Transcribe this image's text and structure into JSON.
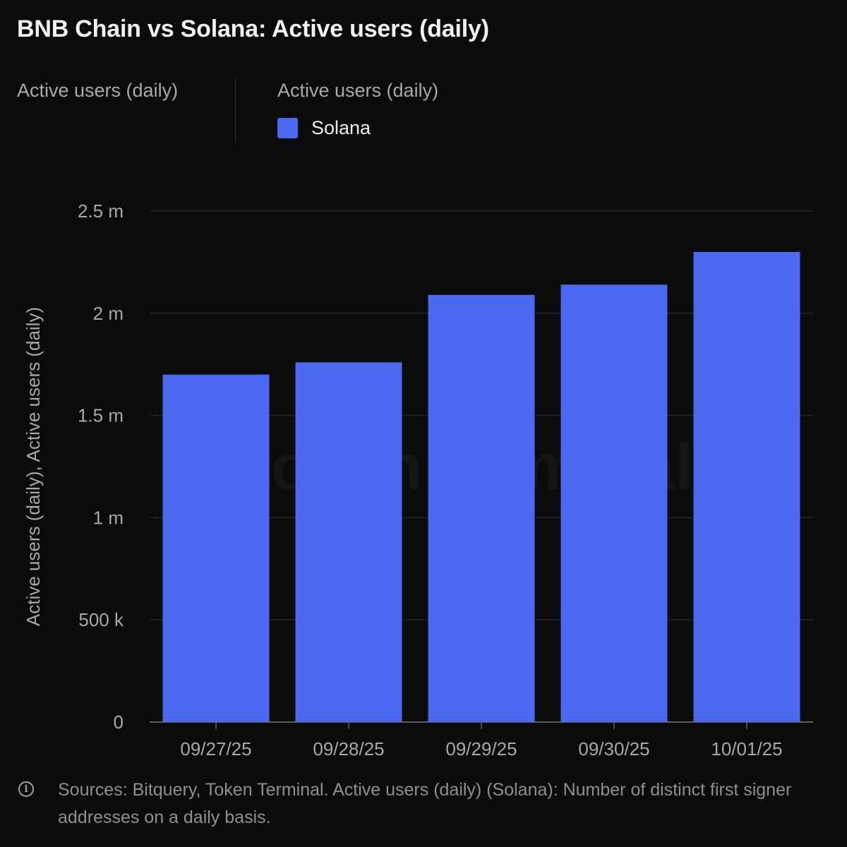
{
  "header": {
    "title": "BNB Chain vs Solana: Active users (daily)"
  },
  "legend": {
    "left_label": "Active users (daily)",
    "right_label": "Active users (daily)",
    "items": [
      {
        "label": "Solana",
        "color": "#4a69f0"
      }
    ]
  },
  "footnote": {
    "icon": "info-icon",
    "text": "Sources: Bitquery, Token Terminal. Active users (daily) (Solana): Number of distinct first signer addresses on a daily basis."
  },
  "chart_data": {
    "type": "bar",
    "categories": [
      "09/27/25",
      "09/28/25",
      "09/29/25",
      "09/30/25",
      "10/01/25"
    ],
    "series": [
      {
        "name": "Solana",
        "color": "#4a69f0",
        "values": [
          1700000,
          1760000,
          2090000,
          2140000,
          2300000
        ]
      }
    ],
    "ylabel": "Active users (daily), Active users (daily)",
    "ylim": [
      0,
      2500000
    ],
    "yticks": [
      0,
      500000,
      1000000,
      1500000,
      2000000,
      2500000
    ],
    "ytick_labels": [
      "0",
      "500 k",
      "1 m",
      "1.5 m",
      "2 m",
      "2.5 m"
    ],
    "grid": true,
    "watermark": "token terminal_"
  }
}
